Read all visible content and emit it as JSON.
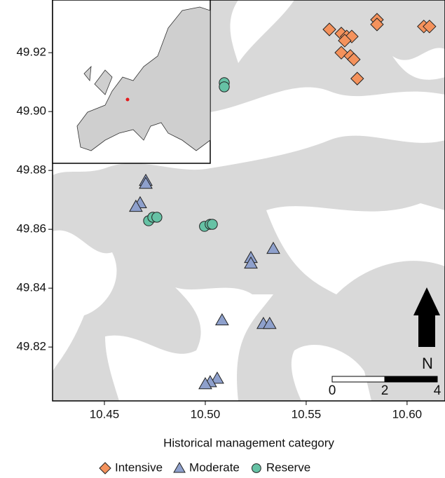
{
  "chart_data": {
    "type": "scatter",
    "legend_title": "Historical management category",
    "xlim": [
      10.4243,
      10.6188
    ],
    "ylim": [
      49.8017,
      49.9379
    ],
    "xticks": [
      10.45,
      {
        "value": 10.5,
        "label": "10.50"
      },
      10.55,
      {
        "value": 10.6,
        "label": "10.60"
      }
    ],
    "yticks": [
      49.82,
      49.84,
      49.86,
      49.88,
      {
        "value": 49.9,
        "label": "49.90"
      },
      49.92
    ],
    "series": [
      {
        "name": "Intensive",
        "color": "#f4925c",
        "marker": "diamond",
        "x": [
          10.5615,
          10.5674,
          10.5701,
          10.5726,
          10.5691,
          10.5674,
          10.5719,
          10.5736,
          10.5753,
          10.5851,
          10.5851,
          10.6083,
          10.6111
        ],
        "values": [
          49.9279,
          49.9265,
          49.9255,
          49.9255,
          49.9241,
          49.92,
          49.9189,
          49.9177,
          49.9112,
          49.9312,
          49.9296,
          49.9289,
          49.9289
        ]
      },
      {
        "name": "Moderate",
        "color": "#8ea0cc",
        "marker": "triangle",
        "x": [
          10.4705,
          10.4705,
          10.4677,
          10.4656,
          10.5226,
          10.5226,
          10.5337,
          10.5083,
          10.5288,
          10.5319,
          10.5059,
          10.5024,
          10.5
        ],
        "values": [
          49.8765,
          49.8755,
          49.8689,
          49.8677,
          49.8503,
          49.8484,
          49.8534,
          49.8291,
          49.8279,
          49.8279,
          49.8093,
          49.8081,
          49.8074
        ]
      },
      {
        "name": "Reserve",
        "color": "#66c2a5",
        "marker": "circle",
        "x": [
          10.5094,
          10.5094,
          10.4719,
          10.474,
          10.476,
          10.4996,
          10.5024,
          10.5035
        ],
        "values": [
          49.9098,
          49.9084,
          49.8629,
          49.8641,
          49.8641,
          49.861,
          49.8617,
          49.8617
        ]
      }
    ],
    "north_label": "N",
    "scale_bar_ticks": [
      0,
      2,
      4
    ]
  }
}
